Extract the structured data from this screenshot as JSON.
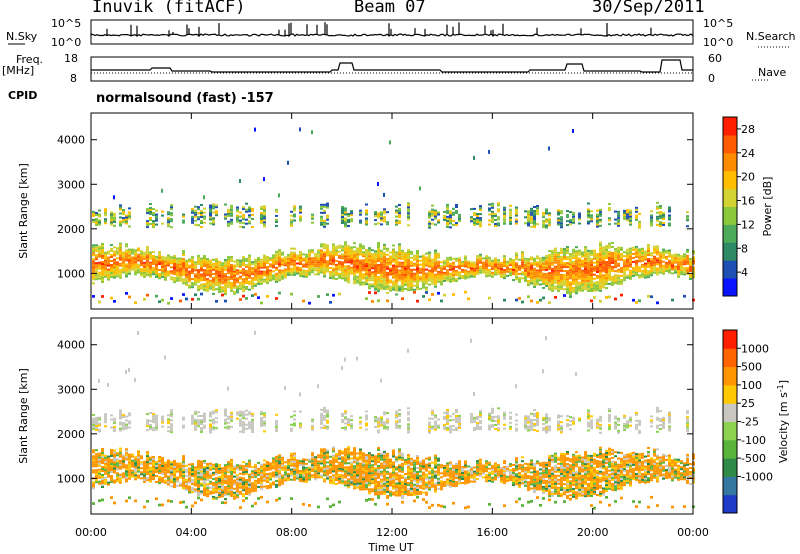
{
  "header": {
    "station": "Inuvik (fitACF)",
    "beam": "Beam 07",
    "date": "30/Sep/2011"
  },
  "noise_panel": {
    "left_label": "N.Sky",
    "right_label": "N.Search",
    "left_ticks": [
      "10^5",
      "10^0"
    ],
    "right_ticks": [
      "10^5",
      "10^0"
    ]
  },
  "freq_panel": {
    "left_label_1": "Freq.",
    "left_label_2": "[MHz]",
    "right_label": "Nave",
    "left_ticks": [
      "18",
      "8"
    ],
    "right_ticks": [
      "60",
      "0"
    ]
  },
  "cpid_panel": {
    "label": "CPID",
    "text": "normalsound (fast) -157"
  },
  "chart_data": [
    {
      "type": "heatmap",
      "ylabel": "Slant Range [km]",
      "x_ticks": [
        "00:00",
        "04:00",
        "08:00",
        "12:00",
        "16:00",
        "20:00",
        "00:00"
      ],
      "y_ticks": [
        1000,
        2000,
        3000,
        4000
      ],
      "ylim": [
        200,
        4600
      ],
      "colorbar": {
        "label": "Power [dB]",
        "ticks": [
          4,
          8,
          12,
          16,
          20,
          24,
          28
        ],
        "range": [
          0,
          30
        ],
        "colors": [
          "#0a14ff",
          "#1e50b4",
          "#2e8a64",
          "#4caa5a",
          "#8cc83c",
          "#d2d232",
          "#ffbe00",
          "#ff8c00",
          "#ff5a00",
          "#ff1e00"
        ]
      }
    },
    {
      "type": "heatmap",
      "ylabel": "Slant Range [km]",
      "xlabel": "Time UT",
      "x_ticks": [
        "00:00",
        "04:00",
        "08:00",
        "12:00",
        "16:00",
        "20:00",
        "00:00"
      ],
      "y_ticks": [
        1000,
        2000,
        3000,
        4000
      ],
      "ylim": [
        200,
        4600
      ],
      "colorbar": {
        "label": "Velocity [m s",
        "label_sup": "-1",
        "label_end": "]",
        "ticks": [
          "1000",
          "500",
          "100",
          "25",
          "-25",
          "-100",
          "-500",
          "-1000"
        ],
        "colors": [
          "#1e3cc8",
          "#3478a0",
          "#2e8a46",
          "#5ab43c",
          "#8cd250",
          "#c8c8c0",
          "#ffc800",
          "#ff9600",
          "#ff6400",
          "#ff1e00"
        ]
      }
    }
  ]
}
